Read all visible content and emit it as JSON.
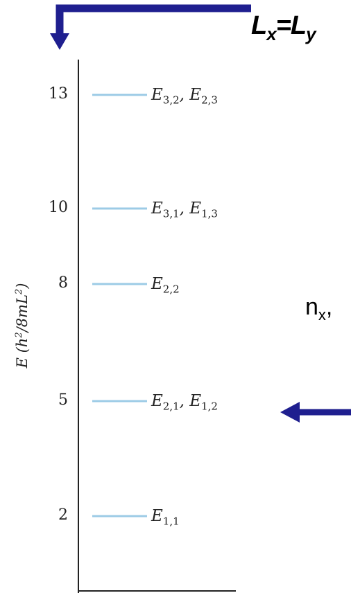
{
  "header": {
    "title_L": "L",
    "title_x": "x",
    "title_eq": "=",
    "title_L2": "L",
    "title_y": "y"
  },
  "side_note": {
    "n": "n",
    "sub": "x",
    "tail": ","
  },
  "axis": {
    "label_E": "E (h",
    "label_sup": "2",
    "label_mid": "/8mL",
    "label_sup2": "2",
    "label_end": ")"
  },
  "levels": [
    {
      "value": "13",
      "label_a": "E",
      "sub_a": "3,2",
      "sep": ", ",
      "label_b": "E",
      "sub_b": "2,3"
    },
    {
      "value": "10",
      "label_a": "E",
      "sub_a": "3,1",
      "sep": ", ",
      "label_b": "E",
      "sub_b": "1,3"
    },
    {
      "value": "8",
      "label_a": "E",
      "sub_a": "2,2",
      "sep": "",
      "label_b": "",
      "sub_b": ""
    },
    {
      "value": "5",
      "label_a": "E",
      "sub_a": "2,1",
      "sep": ", ",
      "label_b": "E",
      "sub_b": "1,2"
    },
    {
      "value": "2",
      "label_a": "E",
      "sub_a": "1,1",
      "sep": "",
      "label_b": "",
      "sub_b": ""
    }
  ],
  "colors": {
    "arrow": "#1f1f8f",
    "level_line": "#9ccbe6",
    "axis": "#222222"
  }
}
